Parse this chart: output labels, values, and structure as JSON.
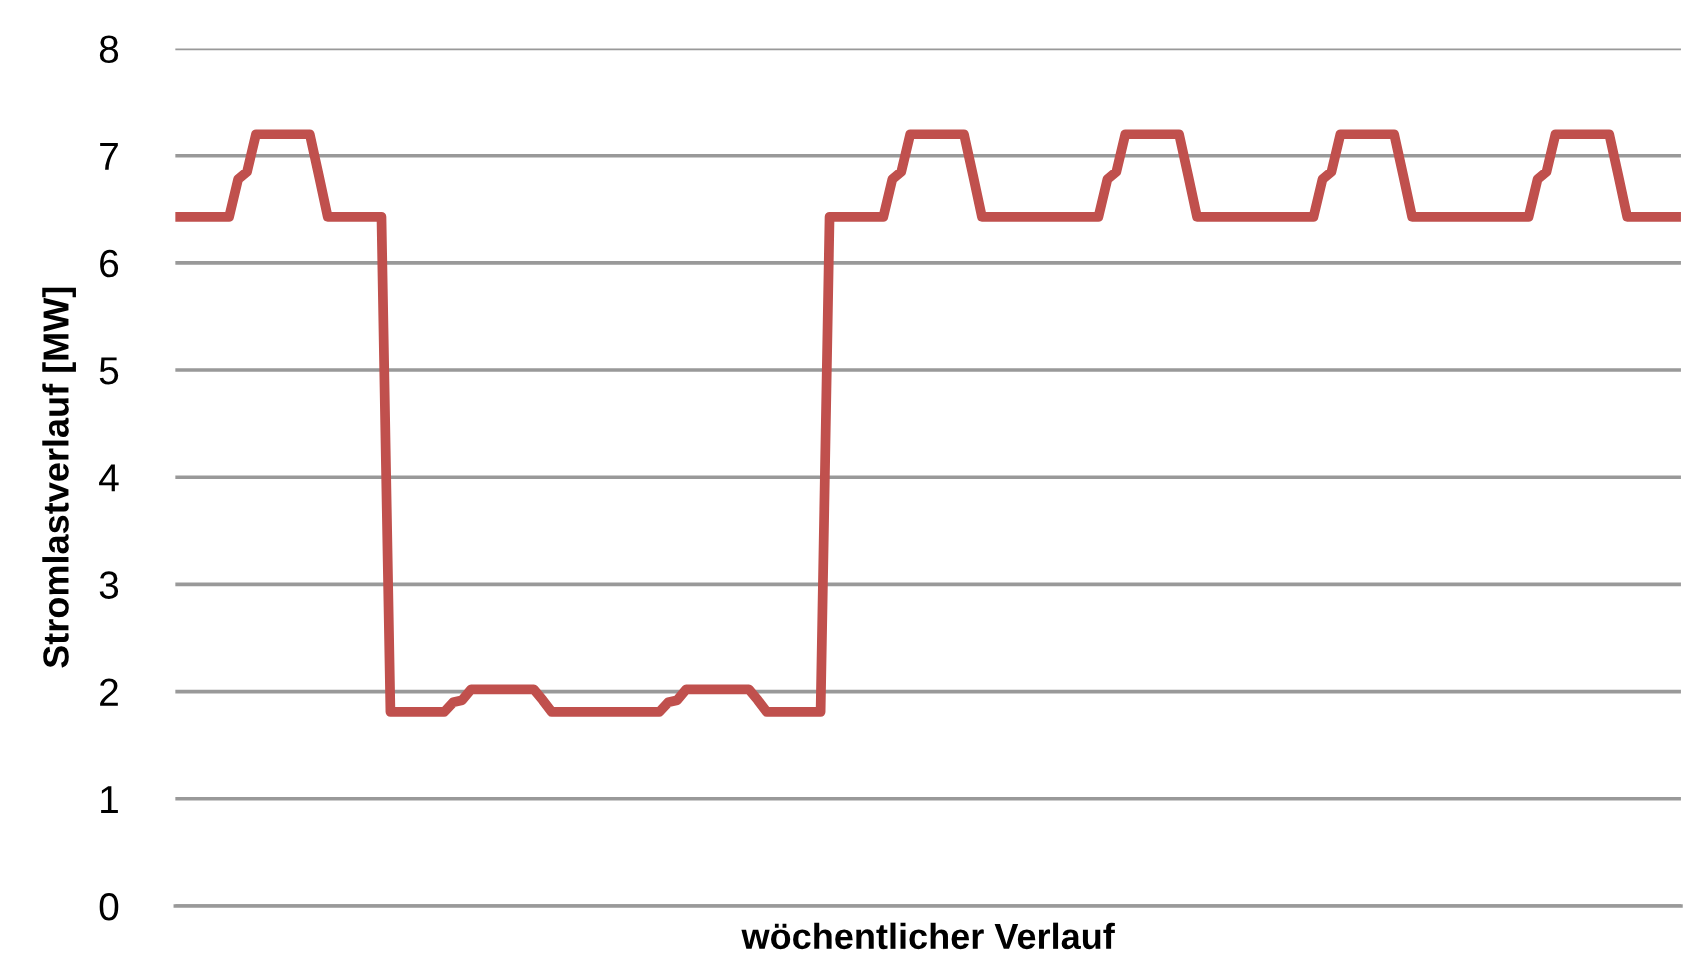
{
  "chart_data": {
    "type": "line",
    "xlabel": "wöchentlicher Verlauf",
    "ylabel": "Stromlastverlauf [MW]",
    "categories": [
      null,
      null,
      null,
      null,
      null,
      null,
      null,
      null,
      null,
      null,
      null,
      null,
      null,
      null,
      null,
      null,
      null,
      null,
      null,
      null,
      null,
      null,
      null,
      null,
      null,
      null,
      null,
      null,
      null,
      null,
      null,
      null,
      null,
      null,
      null,
      null,
      null,
      null,
      null,
      null,
      null,
      null,
      null,
      null,
      null,
      null,
      null,
      null,
      null,
      null,
      null,
      null,
      null,
      null,
      null,
      null,
      null,
      null,
      null,
      null,
      null,
      null,
      null,
      null,
      null,
      null,
      null,
      null,
      null,
      null,
      null,
      null,
      null,
      null,
      null,
      null,
      null,
      null,
      null,
      null,
      null,
      null,
      null,
      null,
      null,
      null,
      null,
      null,
      null,
      null,
      null,
      null,
      null,
      null,
      null,
      null,
      null,
      null,
      null,
      null,
      null,
      null,
      null,
      null,
      null,
      null,
      null,
      null,
      null,
      null,
      null,
      null,
      null,
      null,
      null,
      null,
      null,
      null,
      null,
      null,
      null,
      null,
      null,
      null,
      null,
      null,
      null,
      null,
      null,
      null,
      null,
      null,
      null,
      null,
      null,
      null,
      null,
      null,
      null,
      null,
      null,
      null,
      null,
      null,
      null,
      null,
      null,
      null,
      null,
      null,
      null,
      null,
      null,
      null,
      null,
      null,
      null,
      null,
      null,
      null,
      null,
      null,
      null,
      null,
      null,
      null,
      null,
      null,
      null
    ],
    "series": [
      {
        "color": "#c0504d",
        "values": [
          6.43,
          6.43,
          6.43,
          6.43,
          6.43,
          6.43,
          6.43,
          6.78,
          6.85,
          7.2,
          7.2,
          7.2,
          7.2,
          7.2,
          7.2,
          7.2,
          6.82,
          6.43,
          6.43,
          6.43,
          6.43,
          6.43,
          6.43,
          6.43,
          1.81,
          1.81,
          1.81,
          1.81,
          1.81,
          1.81,
          1.81,
          1.9,
          1.92,
          2.02,
          2.02,
          2.02,
          2.02,
          2.02,
          2.02,
          2.02,
          2.02,
          1.92,
          1.81,
          1.81,
          1.81,
          1.81,
          1.81,
          1.81,
          1.81,
          1.81,
          1.81,
          1.81,
          1.81,
          1.81,
          1.81,
          1.9,
          1.92,
          2.02,
          2.02,
          2.02,
          2.02,
          2.02,
          2.02,
          2.02,
          2.02,
          1.92,
          1.81,
          1.81,
          1.81,
          1.81,
          1.81,
          1.81,
          1.81,
          6.43,
          6.43,
          6.43,
          6.43,
          6.43,
          6.43,
          6.43,
          6.78,
          6.85,
          7.2,
          7.2,
          7.2,
          7.2,
          7.2,
          7.2,
          7.2,
          6.82,
          6.43,
          6.43,
          6.43,
          6.43,
          6.43,
          6.43,
          6.43,
          6.43,
          6.43,
          6.43,
          6.43,
          6.43,
          6.43,
          6.43,
          6.78,
          6.85,
          7.2,
          7.2,
          7.2,
          7.2,
          7.2,
          7.2,
          7.2,
          6.82,
          6.43,
          6.43,
          6.43,
          6.43,
          6.43,
          6.43,
          6.43,
          6.43,
          6.43,
          6.43,
          6.43,
          6.43,
          6.43,
          6.43,
          6.78,
          6.85,
          7.2,
          7.2,
          7.2,
          7.2,
          7.2,
          7.2,
          7.2,
          6.82,
          6.43,
          6.43,
          6.43,
          6.43,
          6.43,
          6.43,
          6.43,
          6.43,
          6.43,
          6.43,
          6.43,
          6.43,
          6.43,
          6.43,
          6.78,
          6.85,
          7.2,
          7.2,
          7.2,
          7.2,
          7.2,
          7.2,
          7.2,
          6.82,
          6.43,
          6.43,
          6.43,
          6.43,
          6.43,
          6.43,
          6.43
        ]
      }
    ],
    "ylim": [
      0,
      8
    ],
    "yticks": [
      0,
      1,
      2,
      3,
      4,
      5,
      6,
      7,
      8
    ],
    "grid": "y",
    "tick_labels": "y",
    "marker": "none",
    "line_style": "solid"
  }
}
